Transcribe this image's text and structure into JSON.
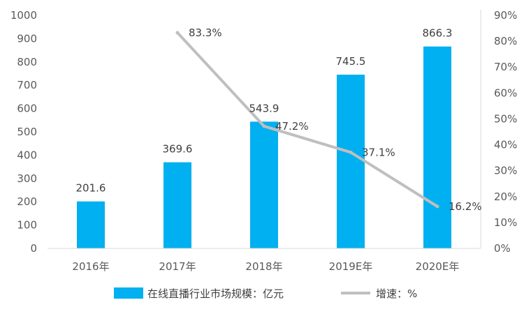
{
  "chart_data": {
    "type": "bar",
    "categories": [
      "2016年",
      "2017年",
      "2018年",
      "2019E年",
      "2020E年"
    ],
    "series": [
      {
        "name": "在线直播行业市场规模：亿元",
        "type": "bar",
        "axis": "left",
        "color": "#00B0F0",
        "values": [
          201.6,
          369.6,
          543.9,
          745.5,
          866.3
        ],
        "labels": [
          "201.6",
          "369.6",
          "543.9",
          "745.5",
          "866.3"
        ]
      },
      {
        "name": "增速：%",
        "type": "line",
        "axis": "right",
        "color": "#BFBFBF",
        "values": [
          null,
          83.3,
          47.2,
          37.1,
          16.2
        ],
        "labels": [
          "",
          "83.3%",
          "47.2%",
          "37.1%",
          "16.2%"
        ]
      }
    ],
    "y_left": {
      "lim": [
        0,
        1000
      ],
      "ticks": [
        0,
        100,
        200,
        300,
        400,
        500,
        600,
        700,
        800,
        900,
        1000
      ],
      "tick_labels": [
        "0",
        "100",
        "200",
        "300",
        "400",
        "500",
        "600",
        "700",
        "800",
        "900",
        "1000"
      ]
    },
    "y_right": {
      "lim": [
        0,
        90
      ],
      "ticks": [
        0,
        10,
        20,
        30,
        40,
        50,
        60,
        70,
        80,
        90
      ],
      "tick_labels": [
        "0%",
        "10%",
        "20%",
        "30%",
        "40%",
        "50%",
        "60%",
        "70%",
        "80%",
        "90%"
      ]
    },
    "grid": false,
    "legend_position": "bottom"
  }
}
